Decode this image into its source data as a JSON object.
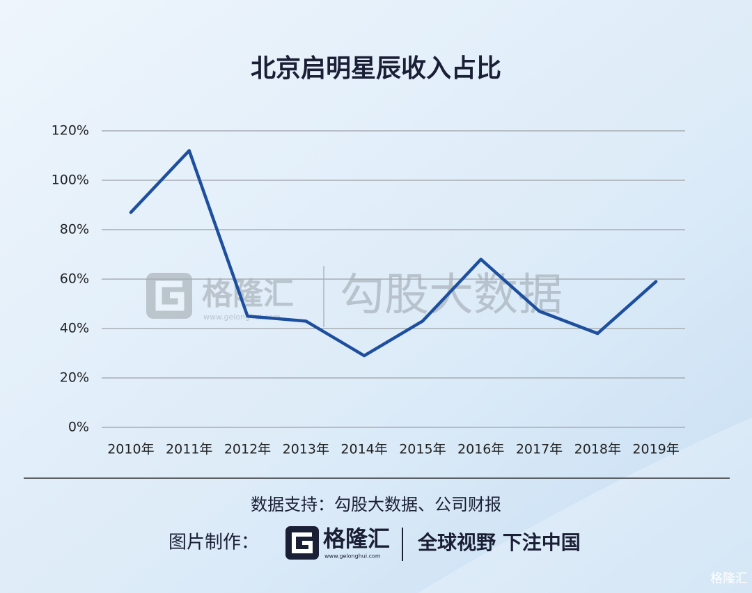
{
  "chart_data": {
    "type": "line",
    "title": "北京启明星辰收入占比",
    "categories": [
      "2010年",
      "2011年",
      "2012年",
      "2013年",
      "2014年",
      "2015年",
      "2016年",
      "2017年",
      "2018年",
      "2019年"
    ],
    "series": [
      {
        "name": "收入占比",
        "color": "#1d4f9e",
        "values": [
          87,
          112,
          45,
          43,
          29,
          43,
          68,
          47,
          38,
          59
        ]
      }
    ],
    "ylim": [
      0,
      120
    ],
    "yticks": [
      {
        "value": 0,
        "label": "0%"
      },
      {
        "value": 20,
        "label": "20%"
      },
      {
        "value": 40,
        "label": "40%"
      },
      {
        "value": 60,
        "label": "60%"
      },
      {
        "value": 80,
        "label": "80%"
      },
      {
        "value": 100,
        "label": "100%"
      },
      {
        "value": 120,
        "label": "120%"
      }
    ],
    "grid": true,
    "legend": false
  },
  "watermark": {
    "brand": "格隆汇",
    "url": "www.gelonghui.com",
    "product": "勾股大数据"
  },
  "footer": {
    "source": "数据支持：勾股大数据、公司财报",
    "maker": "图片制作：",
    "brand": "格隆汇",
    "url": "www.gelonghui.com",
    "slogan": "全球视野 下注中国",
    "corner": "格隆汇"
  }
}
